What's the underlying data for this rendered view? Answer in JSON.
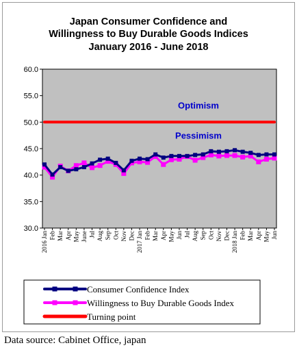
{
  "chart_data": {
    "type": "line",
    "title": [
      "Japan Consumer Confidence and",
      "Willingness to Buy Durable Goods Indices",
      "January 2016 - June 2018"
    ],
    "ylim": [
      30.0,
      60.0
    ],
    "yticks": [
      "30.0",
      "35.0",
      "40.0",
      "45.0",
      "50.0",
      "55.0",
      "60.0"
    ],
    "grid": false,
    "legend_placement": "bottom",
    "plot_background": "#c0c0c0",
    "x_tick_labels": [
      "2016 Jan",
      "Feb",
      "Mar",
      "Apr",
      "May",
      "June",
      "Jul",
      "Aug",
      "Sep",
      "Oct",
      "Nov",
      "Dec",
      "2017 Jan",
      "Feb",
      "Mar",
      "Apr",
      "May",
      "Jun",
      "Jul",
      "Aug",
      "Sep",
      "Oct",
      "Nov",
      "Dec",
      "2018 Jan",
      "Feb",
      "Mar",
      "Apr",
      "May",
      "Jun"
    ],
    "annotations": [
      {
        "text": "Optimism",
        "y": 53.2,
        "color": "#0000cc"
      },
      {
        "text": "Pessimism",
        "y": 47.5,
        "color": "#0000cc"
      }
    ],
    "series": [
      {
        "name": "Consumer Confidence Index",
        "color": "#000080",
        "values": [
          42.0,
          40.1,
          41.5,
          40.8,
          41.1,
          41.5,
          42.2,
          42.9,
          43.1,
          42.3,
          40.9,
          42.7,
          43.1,
          43.0,
          43.9,
          43.3,
          43.6,
          43.6,
          43.6,
          43.8,
          43.9,
          44.5,
          44.4,
          44.5,
          44.7,
          44.4,
          44.2,
          43.8,
          43.9,
          43.9
        ]
      },
      {
        "name": "Willingness to Buy Durable Goods Index",
        "color": "#ff00ff",
        "values": [
          41.5,
          39.6,
          41.7,
          40.8,
          41.8,
          42.3,
          41.4,
          41.8,
          42.6,
          42.0,
          40.3,
          42.3,
          42.5,
          42.4,
          43.5,
          42.0,
          42.9,
          43.0,
          43.5,
          42.8,
          43.3,
          43.8,
          43.6,
          43.7,
          43.7,
          43.4,
          43.6,
          42.5,
          43.0,
          43.2
        ]
      },
      {
        "name": "Turning point",
        "color": "#ff0000",
        "values": [
          50,
          50,
          50,
          50,
          50,
          50,
          50,
          50,
          50,
          50,
          50,
          50,
          50,
          50,
          50,
          50,
          50,
          50,
          50,
          50,
          50,
          50,
          50,
          50,
          50,
          50,
          50,
          50,
          50,
          50
        ]
      }
    ]
  },
  "source": "Data source: Cabinet Office, japan"
}
